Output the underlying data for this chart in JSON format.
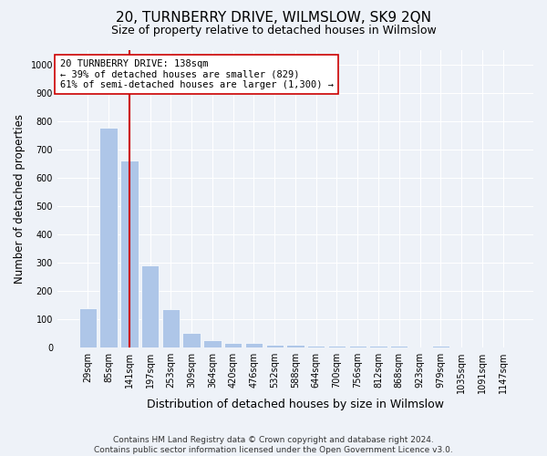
{
  "title": "20, TURNBERRY DRIVE, WILMSLOW, SK9 2QN",
  "subtitle": "Size of property relative to detached houses in Wilmslow",
  "xlabel": "Distribution of detached houses by size in Wilmslow",
  "ylabel": "Number of detached properties",
  "categories": [
    "29sqm",
    "85sqm",
    "141sqm",
    "197sqm",
    "253sqm",
    "309sqm",
    "364sqm",
    "420sqm",
    "476sqm",
    "532sqm",
    "588sqm",
    "644sqm",
    "700sqm",
    "756sqm",
    "812sqm",
    "868sqm",
    "923sqm",
    "979sqm",
    "1035sqm",
    "1091sqm",
    "1147sqm"
  ],
  "values": [
    140,
    778,
    660,
    291,
    135,
    52,
    28,
    18,
    18,
    10,
    10,
    8,
    8,
    8,
    8,
    8,
    0,
    8,
    0,
    0,
    0
  ],
  "bar_color": "#aec6e8",
  "vline_x": 2,
  "vline_color": "#cc0000",
  "annotation_text": "20 TURNBERRY DRIVE: 138sqm\n← 39% of detached houses are smaller (829)\n61% of semi-detached houses are larger (1,300) →",
  "annotation_box_color": "#ffffff",
  "annotation_box_edge": "#cc0000",
  "ylim": [
    0,
    1050
  ],
  "yticks": [
    0,
    100,
    200,
    300,
    400,
    500,
    600,
    700,
    800,
    900,
    1000
  ],
  "footer_line1": "Contains HM Land Registry data © Crown copyright and database right 2024.",
  "footer_line2": "Contains public sector information licensed under the Open Government Licence v3.0.",
  "bg_color": "#eef2f8",
  "plot_bg_color": "#eef2f8",
  "title_fontsize": 11,
  "subtitle_fontsize": 9,
  "xlabel_fontsize": 9,
  "ylabel_fontsize": 8.5,
  "tick_fontsize": 7,
  "footer_fontsize": 6.5
}
